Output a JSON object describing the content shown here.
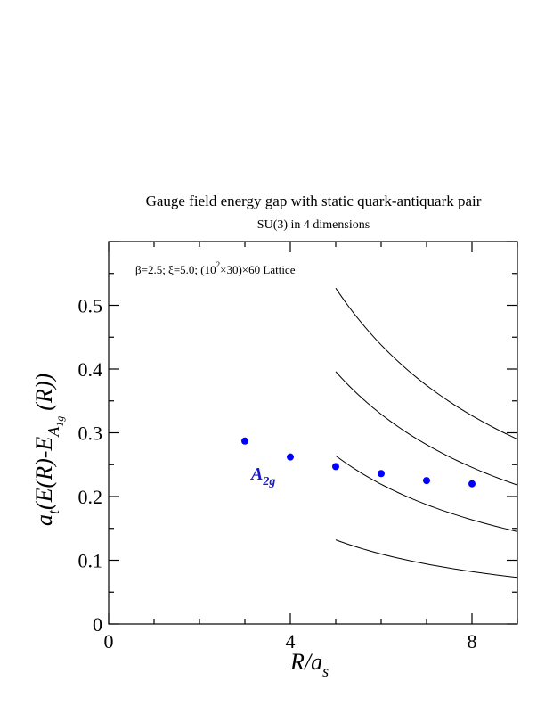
{
  "chart_data": {
    "type": "scatter",
    "title": "Gauge field energy gap with static quark-antiquark pair",
    "subtitle": "SU(3) in 4 dimensions",
    "annotation": {
      "pre": "β=2.5;  ξ=5.0;  (10",
      "sup": "2",
      "post": "×30)×60 Lattice"
    },
    "xlabel": {
      "main": "R/a",
      "sub": "s"
    },
    "ylabel": {
      "pre": "a",
      "sub_t": "t",
      "mid": "(E(R)-E",
      "sub_a": "A",
      "sub_1g": "1g",
      "post": "(R))"
    },
    "xlim": [
      0,
      9
    ],
    "ylim": [
      0,
      0.6
    ],
    "x_ticks": [
      0,
      4,
      8
    ],
    "y_ticks": [
      0,
      0.1,
      0.2,
      0.3,
      0.4,
      0.5
    ],
    "y_tick_labels": [
      "0",
      "0.1",
      "0.2",
      "0.3",
      "0.4",
      "0.5"
    ],
    "grid": false,
    "series": [
      {
        "name": "A2g",
        "label_main": "A",
        "label_sub": "2g",
        "color": "#0000ff",
        "points": [
          {
            "x": 3,
            "y": 0.287
          },
          {
            "x": 4,
            "y": 0.262
          },
          {
            "x": 5,
            "y": 0.247
          },
          {
            "x": 6,
            "y": 0.236
          },
          {
            "x": 7,
            "y": 0.225
          },
          {
            "x": 8,
            "y": 0.22
          }
        ]
      }
    ],
    "reference_curves": [
      {
        "x_start": 5,
        "x_end": 9,
        "y_start": 0.132,
        "y_end": 0.073
      },
      {
        "x_start": 5,
        "x_end": 9,
        "y_start": 0.264,
        "y_end": 0.145
      },
      {
        "x_start": 5,
        "x_end": 9,
        "y_start": 0.396,
        "y_end": 0.218
      },
      {
        "x_start": 5,
        "x_end": 9,
        "y_start": 0.527,
        "y_end": 0.29
      }
    ]
  }
}
